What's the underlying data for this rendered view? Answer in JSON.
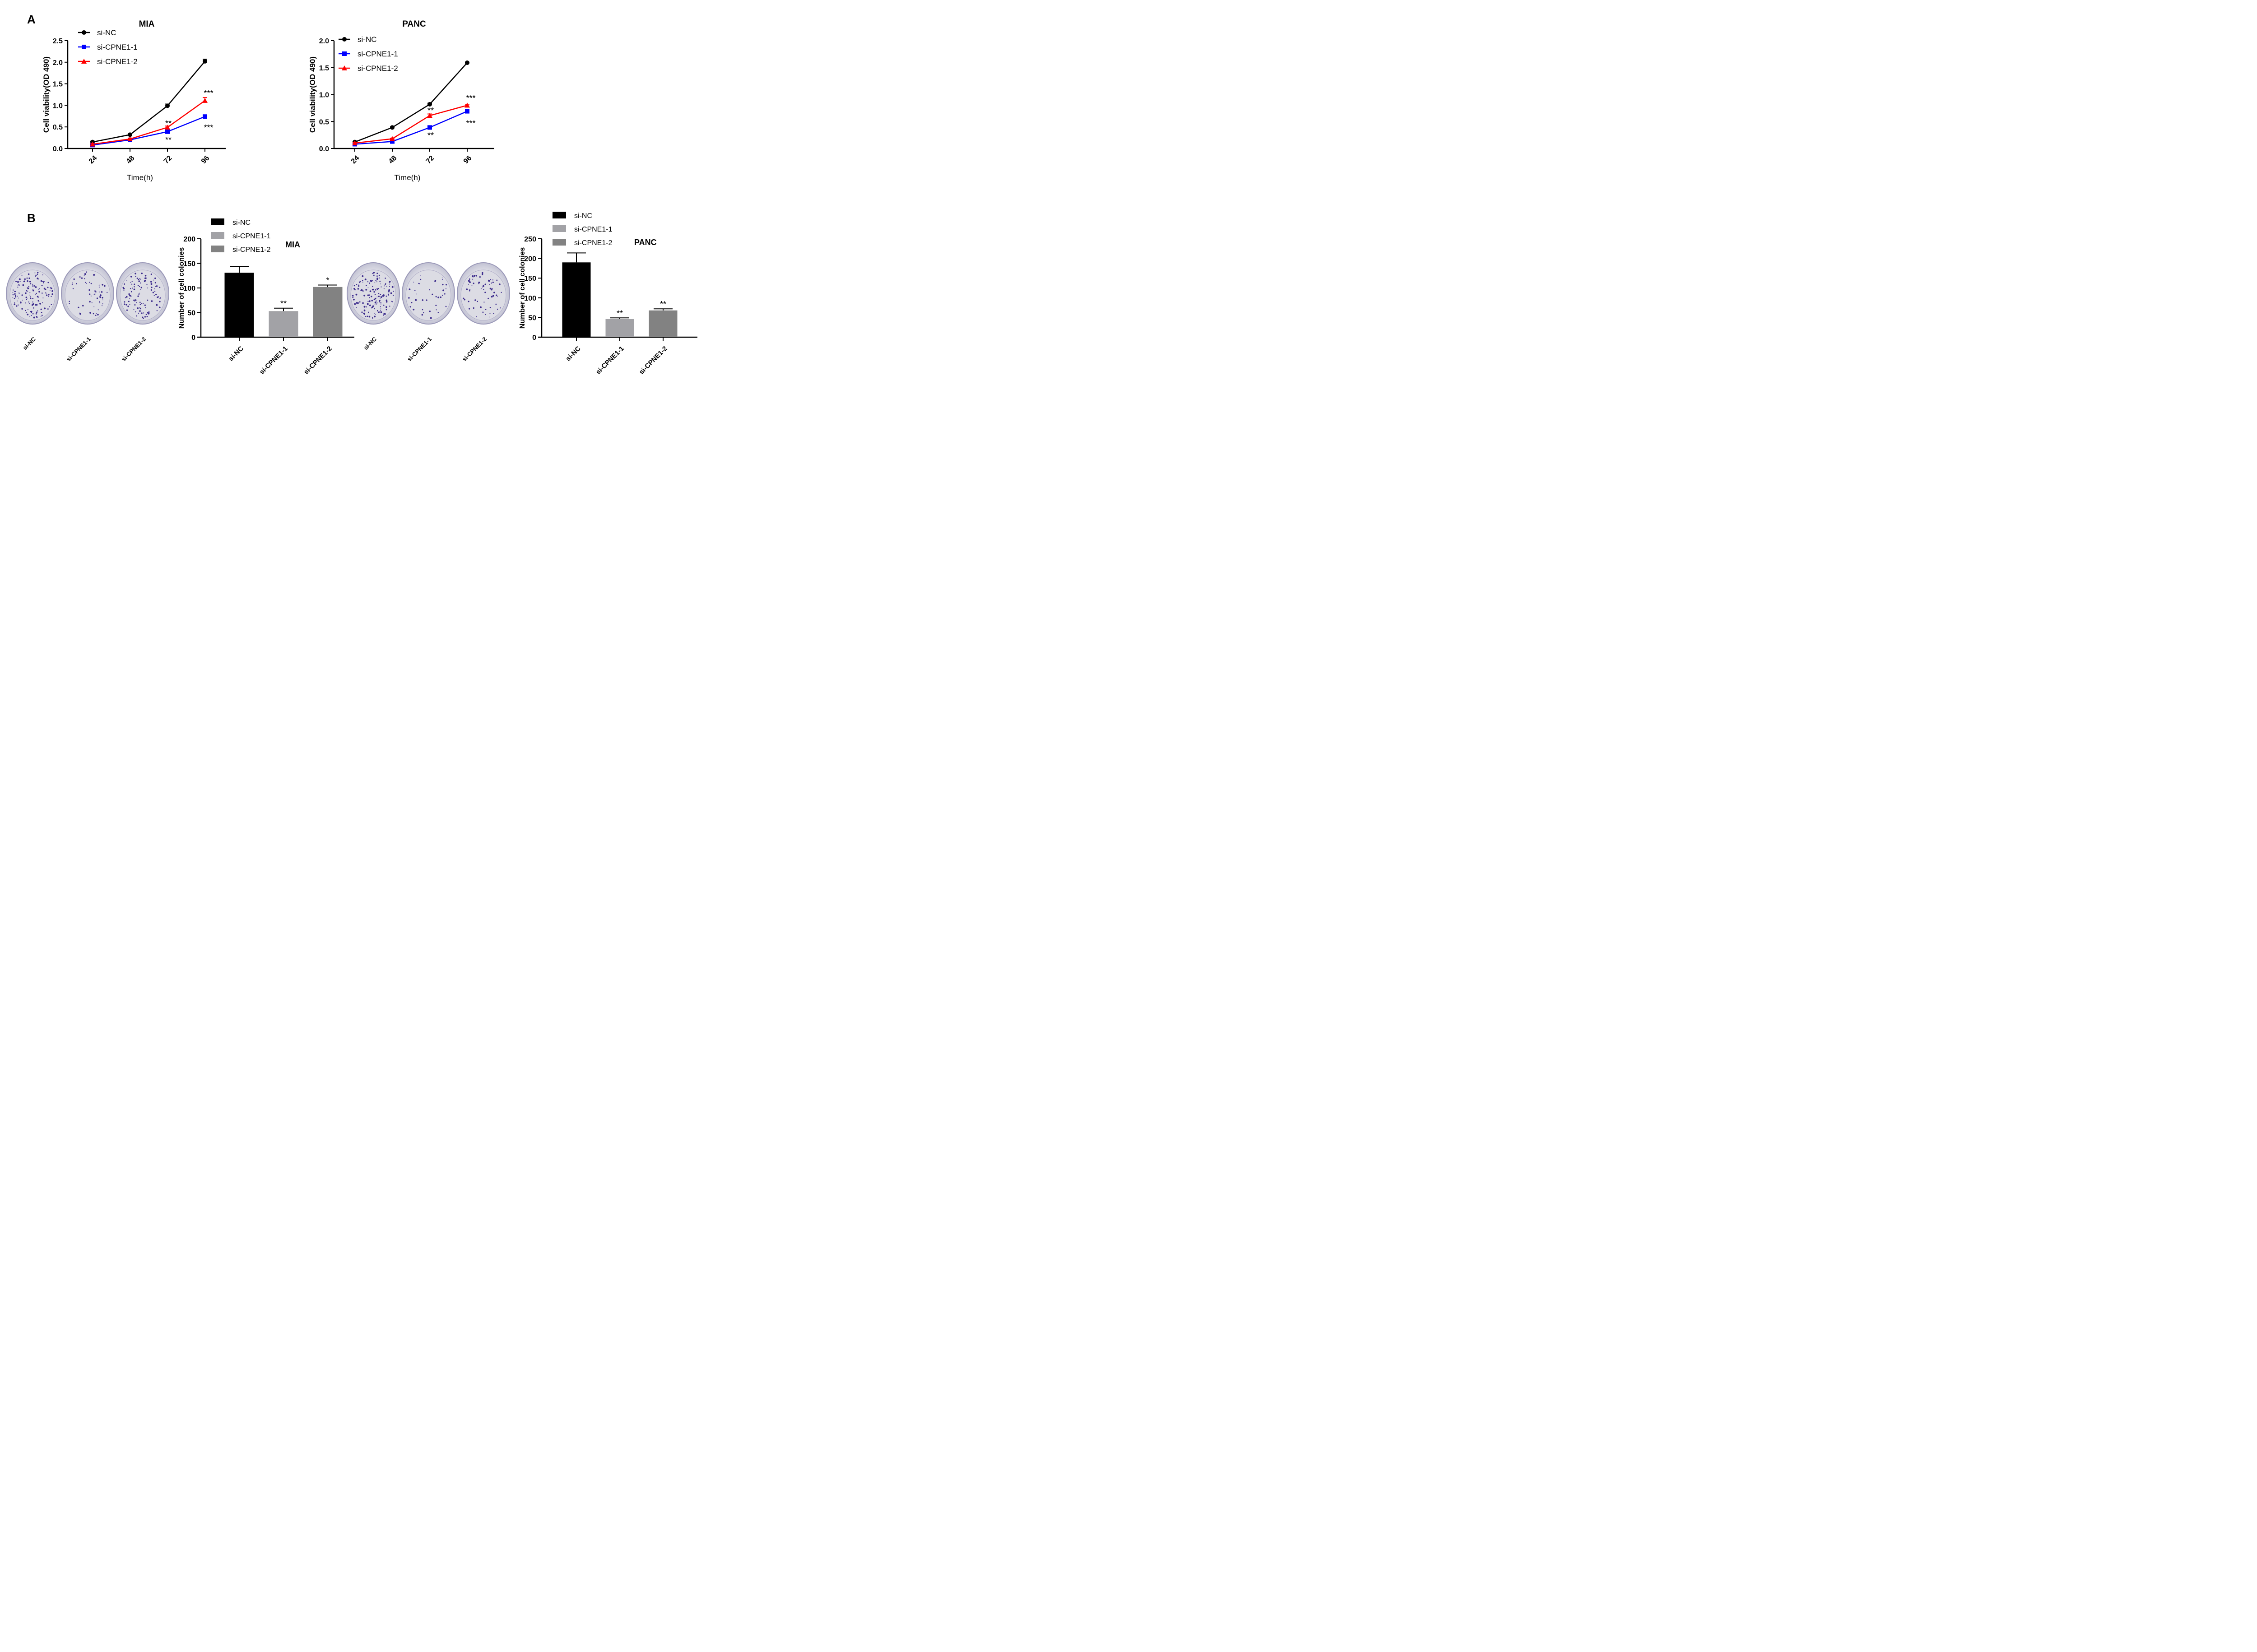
{
  "panels": {
    "a_label": "A",
    "b_label": "B"
  },
  "chart_data": [
    {
      "id": "mia-line",
      "type": "line",
      "title": "MIA",
      "xlabel": "Time(h)",
      "ylabel": "Cell viability(OD 490)",
      "categories": [
        "24",
        "48",
        "72",
        "96"
      ],
      "ylim": [
        0,
        2.5
      ],
      "yticks": [
        "0.0",
        "0.5",
        "1.0",
        "1.5",
        "2.0",
        "2.5"
      ],
      "legend_position": "top-left",
      "series": [
        {
          "name": "si-NC",
          "color": "#000000",
          "marker": "circle",
          "values": [
            0.15,
            0.32,
            0.99,
            2.02
          ],
          "errors": [
            0.02,
            0.02,
            0.04,
            0.05
          ]
        },
        {
          "name": "si-CPNE1-1",
          "color": "#0000ff",
          "marker": "square",
          "values": [
            0.08,
            0.2,
            0.39,
            0.74
          ],
          "errors": [
            0.01,
            0.02,
            0.02,
            0.02
          ]
        },
        {
          "name": "si-CPNE1-2",
          "color": "#ff0000",
          "marker": "triangle",
          "values": [
            0.1,
            0.22,
            0.49,
            1.11
          ],
          "errors": [
            0.01,
            0.02,
            0.03,
            0.07
          ]
        }
      ],
      "annotations": [
        {
          "text": "**",
          "x": "72",
          "y": 0.6,
          "series": "si-CPNE1-2"
        },
        {
          "text": "**",
          "x": "72",
          "y": 0.22,
          "series": "si-CPNE1-1"
        },
        {
          "text": "***",
          "x": "96",
          "y": 1.3,
          "series": "si-CPNE1-2"
        },
        {
          "text": "***",
          "x": "96",
          "y": 0.5,
          "series": "si-CPNE1-1"
        }
      ]
    },
    {
      "id": "panc-line",
      "type": "line",
      "title": "PANC",
      "xlabel": "Time(h)",
      "ylabel": "Cell viability(OD 490)",
      "categories": [
        "24",
        "48",
        "72",
        "96"
      ],
      "ylim": [
        0,
        2.0
      ],
      "yticks": [
        "0.0",
        "0.5",
        "1.0",
        "1.5",
        "2.0"
      ],
      "legend_position": "top-left",
      "series": [
        {
          "name": "si-NC",
          "color": "#000000",
          "marker": "circle",
          "values": [
            0.12,
            0.39,
            0.82,
            1.59
          ],
          "errors": [
            0.01,
            0.01,
            0.02,
            0.01
          ]
        },
        {
          "name": "si-CPNE1-1",
          "color": "#0000ff",
          "marker": "square",
          "values": [
            0.08,
            0.13,
            0.39,
            0.69
          ],
          "errors": [
            0.01,
            0.01,
            0.02,
            0.02
          ]
        },
        {
          "name": "si-CPNE1-2",
          "color": "#ff0000",
          "marker": "triangle",
          "values": [
            0.1,
            0.18,
            0.61,
            0.8
          ],
          "errors": [
            0.01,
            0.01,
            0.03,
            0.01
          ]
        }
      ],
      "annotations": [
        {
          "text": "**",
          "x": "72",
          "y": 0.72,
          "series": "si-CPNE1-2"
        },
        {
          "text": "**",
          "x": "72",
          "y": 0.26,
          "series": "si-CPNE1-1"
        },
        {
          "text": "***",
          "x": "96",
          "y": 0.95,
          "series": "si-CPNE1-2"
        },
        {
          "text": "***",
          "x": "96",
          "y": 0.48,
          "series": "si-CPNE1-1"
        }
      ]
    },
    {
      "id": "mia-bar",
      "type": "bar",
      "title": "MIA",
      "xlabel": "",
      "ylabel": "Number of cell colonies",
      "categories": [
        "si-NC",
        "si-CPNE1-1",
        "si-CPNE1-2"
      ],
      "values": [
        131,
        53,
        102
      ],
      "errors": [
        13,
        6,
        4
      ],
      "colors": [
        "#000000",
        "#a2a2a6",
        "#828282"
      ],
      "significance": [
        "",
        "**",
        "*"
      ],
      "ylim": [
        0,
        200
      ],
      "yticks": [
        "0",
        "50",
        "100",
        "150",
        "200"
      ],
      "legend_position": "top-left"
    },
    {
      "id": "panc-bar",
      "type": "bar",
      "title": "PANC",
      "xlabel": "",
      "ylabel": "Number of cell colonies",
      "categories": [
        "si-NC",
        "si-CPNE1-1",
        "si-CPNE1-2"
      ],
      "values": [
        190,
        46,
        68
      ],
      "errors": [
        24,
        3,
        4
      ],
      "colors": [
        "#000000",
        "#a2a2a6",
        "#828282"
      ],
      "significance": [
        "",
        "**",
        "**"
      ],
      "ylim": [
        0,
        250
      ],
      "yticks": [
        "0",
        "50",
        "100",
        "150",
        "200",
        "250"
      ],
      "legend_position": "top-left"
    }
  ],
  "dishes": {
    "mia": {
      "labels": [
        "si-NC",
        "si-CPNE1-1",
        "si-CPNE1-2"
      ],
      "colony_density": [
        0.9,
        0.35,
        0.7
      ]
    },
    "panc": {
      "labels": [
        "si-NC",
        "si-CPNE1-1",
        "si-CPNE1-2"
      ],
      "colony_density": [
        1.0,
        0.25,
        0.4
      ]
    }
  }
}
